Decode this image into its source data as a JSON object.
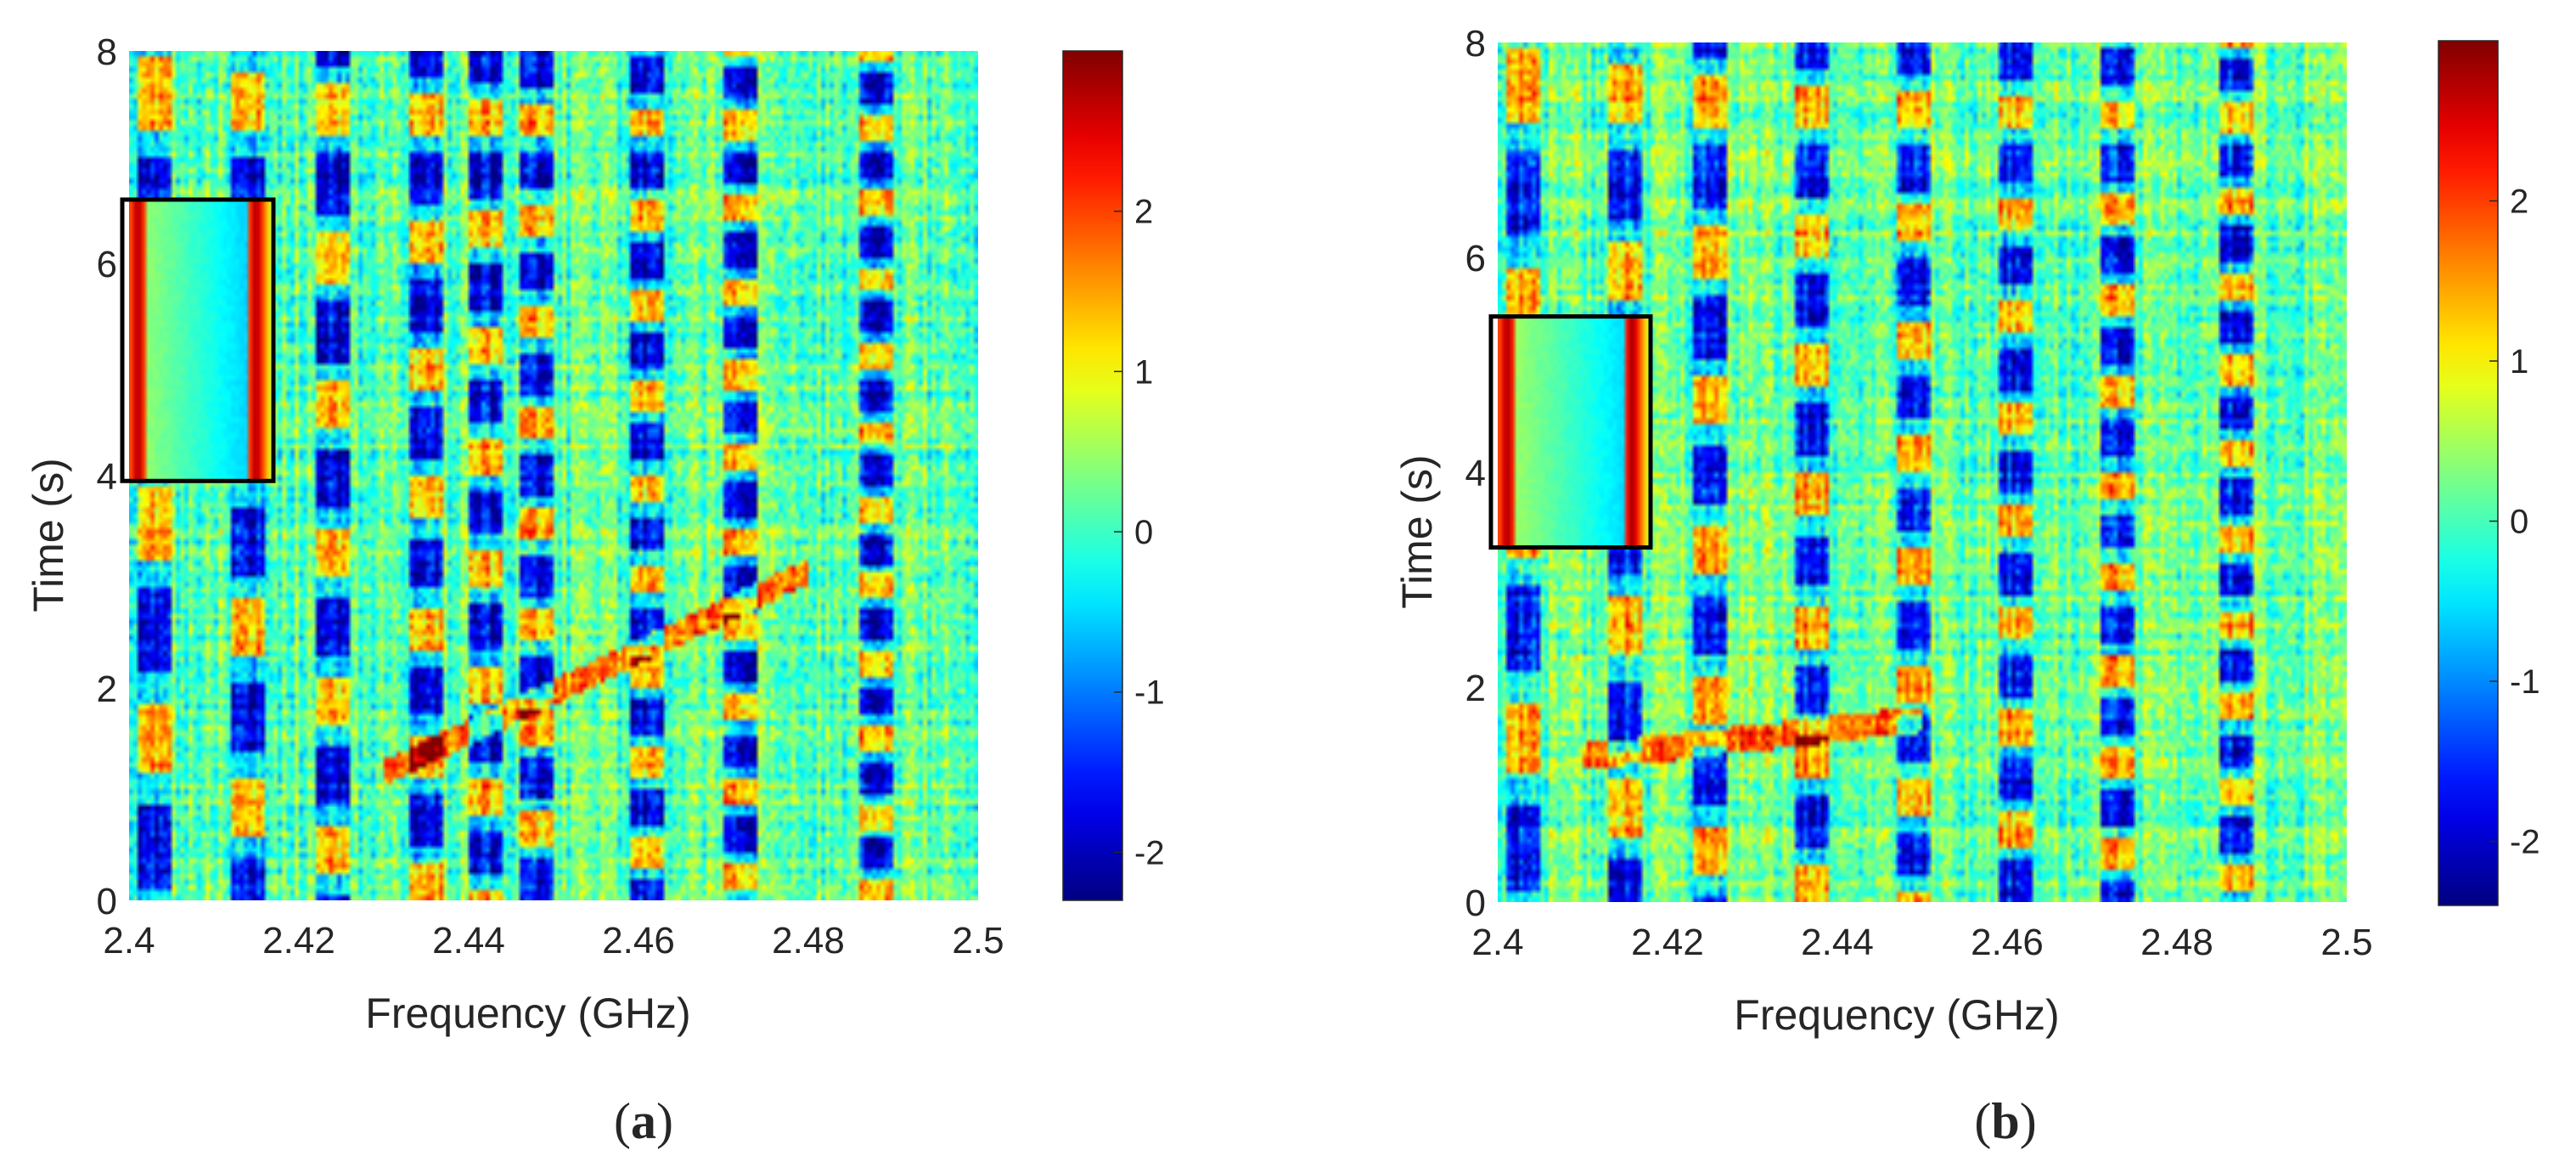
{
  "chart_data": [
    {
      "type": "heatmap",
      "panel": "a",
      "caption_open": "(",
      "caption_letter": "a",
      "caption_close": ")",
      "xlabel": "Frequency (GHz)",
      "ylabel": "Time (s)",
      "xlim": [
        2.4,
        2.5
      ],
      "ylim": [
        0,
        8
      ],
      "xticks": [
        "2.4",
        "2.42",
        "2.44",
        "2.46",
        "2.48",
        "2.5"
      ],
      "yticks": [
        "0",
        "2",
        "4",
        "6",
        "8"
      ],
      "colorbar": {
        "range": [
          -2.3,
          3.0
        ],
        "ticks": [
          "-2",
          "-1",
          "0",
          "1",
          "2"
        ]
      },
      "highlight_box": {
        "x": [
          2.4,
          2.417
        ],
        "y": [
          3.95,
          6.6
        ],
        "color": "#000000"
      },
      "colormap": "jet",
      "vertical_bands_ghz": [
        2.403,
        2.414,
        2.424,
        2.435,
        2.442,
        2.448,
        2.461,
        2.472,
        2.488
      ],
      "diagonal_trace": {
        "from": [
          2.43,
          1.2
        ],
        "to": [
          2.48,
          3.1
        ]
      },
      "seed": 7
    },
    {
      "type": "heatmap",
      "panel": "b",
      "caption_open": "(",
      "caption_letter": "b",
      "caption_close": ")",
      "xlabel": "Frequency (GHz)",
      "ylabel": "Time (s)",
      "xlim": [
        2.4,
        2.5
      ],
      "ylim": [
        0,
        8
      ],
      "xticks": [
        "2.4",
        "2.42",
        "2.44",
        "2.46",
        "2.48",
        "2.5"
      ],
      "yticks": [
        "0",
        "2",
        "4",
        "6",
        "8"
      ],
      "colorbar": {
        "range": [
          -2.4,
          3.0
        ],
        "ticks": [
          "-2",
          "-1",
          "0",
          "1",
          "2"
        ]
      },
      "highlight_box": {
        "x": [
          2.4,
          2.418
        ],
        "y": [
          3.3,
          5.45
        ],
        "color": "#000000"
      },
      "colormap": "jet",
      "vertical_bands_ghz": [
        2.403,
        2.415,
        2.425,
        2.437,
        2.449,
        2.461,
        2.473,
        2.487
      ],
      "diagonal_trace": {
        "from": [
          2.41,
          1.35
        ],
        "to": [
          2.45,
          1.7
        ]
      },
      "seed": 19
    }
  ]
}
